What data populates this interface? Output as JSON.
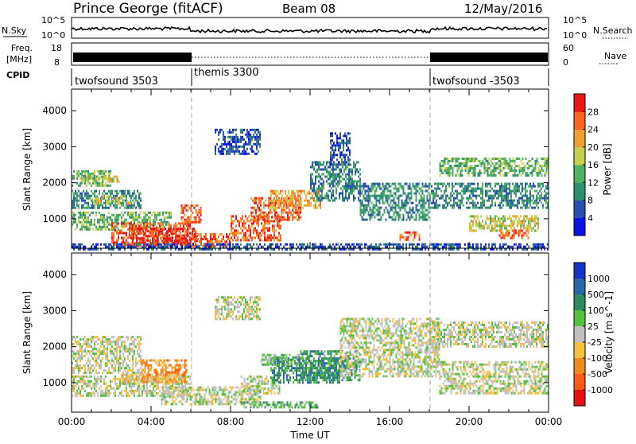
{
  "header": {
    "station": "Prince George (fitACF)",
    "beam": "Beam 08",
    "date": "12/May/2016"
  },
  "sky_panel": {
    "left_label": "N.Sky",
    "left_ticks": [
      "10^5",
      "10^0"
    ],
    "right_ticks": [
      "10^5",
      "10^0"
    ],
    "right_label": "N.Search"
  },
  "freq_panel": {
    "left_label_1": "Freq.",
    "left_label_2": "[MHz]",
    "left_ticks": [
      "18",
      "8"
    ],
    "right_ticks": [
      "60",
      "0"
    ],
    "right_label": "Nave"
  },
  "cpid": {
    "label": "CPID",
    "segments": [
      {
        "name": "twofsound 3503",
        "start_h": 0,
        "end_h": 6
      },
      {
        "name": "themis 3300",
        "start_h": 6,
        "end_h": 18
      },
      {
        "name": "twofsound -3503",
        "start_h": 18,
        "end_h": 24
      }
    ]
  },
  "chart_data": [
    {
      "type": "heatmap",
      "quantity": "power",
      "xlabel": "",
      "ylabel": "Slant Range [km]",
      "xlim": [
        0,
        24
      ],
      "ylim": [
        180,
        4600
      ],
      "yticks": [
        "1000",
        "2000",
        "3000",
        "4000"
      ],
      "colorbar": {
        "label": "Power [dB]",
        "range": [
          0,
          32
        ],
        "ticks": [
          "4",
          "8",
          "12",
          "16",
          "20",
          "24",
          "28"
        ],
        "colors": [
          "#0a12e6",
          "#2a4fb0",
          "#2f8f6e",
          "#52b060",
          "#c6d24e",
          "#f0a030",
          "#ff6520",
          "#e81818"
        ]
      },
      "echo_regions": [
        {
          "t0": 0.0,
          "t1": 2.0,
          "r0": 1900,
          "r1": 2350,
          "level": 3
        },
        {
          "t0": 0.5,
          "t1": 2.5,
          "r0": 2050,
          "r1": 2200,
          "level": 4
        },
        {
          "t0": 0.0,
          "t1": 3.5,
          "r0": 1300,
          "r1": 1800,
          "level": 2
        },
        {
          "t0": 1.0,
          "t1": 3.0,
          "r0": 1400,
          "r1": 1650,
          "level": 4
        },
        {
          "t0": 0.0,
          "t1": 5.0,
          "r0": 700,
          "r1": 1200,
          "level": 3
        },
        {
          "t0": 2.0,
          "t1": 6.0,
          "r0": 300,
          "r1": 900,
          "level": 6
        },
        {
          "t0": 3.0,
          "t1": 6.3,
          "r0": 250,
          "r1": 750,
          "level": 7
        },
        {
          "t0": 5.5,
          "t1": 6.5,
          "r0": 900,
          "r1": 1400,
          "level": 6
        },
        {
          "t0": 6.0,
          "t1": 8.0,
          "r0": 250,
          "r1": 600,
          "level": 6
        },
        {
          "t0": 7.2,
          "t1": 9.5,
          "r0": 2800,
          "r1": 3500,
          "level": 1
        },
        {
          "t0": 8.0,
          "t1": 10.5,
          "r0": 400,
          "r1": 1100,
          "level": 6
        },
        {
          "t0": 9.0,
          "t1": 11.5,
          "r0": 1000,
          "r1": 1600,
          "level": 6
        },
        {
          "t0": 10.0,
          "t1": 12.5,
          "r0": 1300,
          "r1": 1800,
          "level": 5
        },
        {
          "t0": 12.0,
          "t1": 14.5,
          "r0": 1500,
          "r1": 2600,
          "level": 2
        },
        {
          "t0": 13.0,
          "t1": 14.0,
          "r0": 2500,
          "r1": 3400,
          "level": 1
        },
        {
          "t0": 14.5,
          "t1": 18.0,
          "r0": 1000,
          "r1": 2000,
          "level": 2
        },
        {
          "t0": 16.5,
          "t1": 17.5,
          "r0": 400,
          "r1": 650,
          "level": 6
        },
        {
          "t0": 18.5,
          "t1": 24.0,
          "r0": 2200,
          "r1": 2700,
          "level": 3
        },
        {
          "t0": 18.0,
          "t1": 24.0,
          "r0": 1300,
          "r1": 2000,
          "level": 2
        },
        {
          "t0": 20.0,
          "t1": 23.5,
          "r0": 700,
          "r1": 1100,
          "level": 4
        },
        {
          "t0": 21.5,
          "t1": 23.0,
          "r0": 500,
          "r1": 700,
          "level": 6
        },
        {
          "t0": 0.0,
          "t1": 24.0,
          "r0": 180,
          "r1": 320,
          "level": 1
        }
      ]
    },
    {
      "type": "heatmap",
      "quantity": "velocity",
      "xlabel": "Time UT",
      "ylabel": "Slant Range [km]",
      "xlim": [
        0,
        24
      ],
      "ylim": [
        180,
        4600
      ],
      "xticks": [
        "00:00",
        "04:00",
        "08:00",
        "12:00",
        "16:00",
        "20:00",
        "00:00"
      ],
      "yticks": [
        "1000",
        "2000",
        "3000",
        "4000"
      ],
      "colorbar": {
        "label": "Velocity [m s^-1]",
        "ticks": [
          "1000",
          "500",
          "100",
          "25",
          "-25",
          "-100",
          "-500",
          "-1000"
        ],
        "colors": [
          "#1833c8",
          "#2a66a8",
          "#2d8a60",
          "#58c040",
          "#c0c0c0",
          "#f5c040",
          "#f08a20",
          "#ff5a18",
          "#e81010"
        ]
      },
      "echo_regions": [
        {
          "t0": 0.0,
          "t1": 3.5,
          "r0": 1300,
          "r1": 2300,
          "level": 4
        },
        {
          "t0": 0.0,
          "t1": 6.0,
          "r0": 650,
          "r1": 1200,
          "level": 4
        },
        {
          "t0": 3.5,
          "t1": 5.8,
          "r0": 1050,
          "r1": 1650,
          "level": 6
        },
        {
          "t0": 2.5,
          "t1": 5.5,
          "r0": 1000,
          "r1": 1250,
          "level": 5
        },
        {
          "t0": 4.5,
          "t1": 9.5,
          "r0": 380,
          "r1": 900,
          "level": 4
        },
        {
          "t0": 7.2,
          "t1": 9.5,
          "r0": 2800,
          "r1": 3400,
          "level": 4
        },
        {
          "t0": 8.5,
          "t1": 10.5,
          "r0": 700,
          "r1": 1200,
          "level": 4
        },
        {
          "t0": 10.0,
          "t1": 13.5,
          "r0": 1000,
          "r1": 1700,
          "level": 2
        },
        {
          "t0": 11.5,
          "t1": 14.5,
          "r0": 1100,
          "r1": 1900,
          "level": 2
        },
        {
          "t0": 9.5,
          "t1": 11.5,
          "r0": 1500,
          "r1": 1800,
          "level": 3
        },
        {
          "t0": 8.5,
          "t1": 12.5,
          "r0": 300,
          "r1": 480,
          "level": 3
        },
        {
          "t0": 13.5,
          "t1": 18.5,
          "r0": 1200,
          "r1": 2800,
          "level": 4
        },
        {
          "t0": 18.0,
          "t1": 24.0,
          "r0": 2000,
          "r1": 2700,
          "level": 4
        },
        {
          "t0": 18.5,
          "t1": 24.0,
          "r0": 700,
          "r1": 1600,
          "level": 4
        }
      ]
    }
  ]
}
